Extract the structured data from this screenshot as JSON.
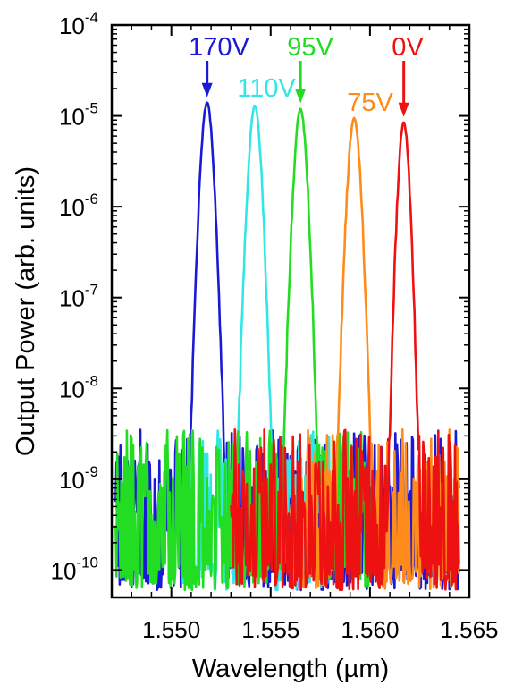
{
  "chart_data": {
    "type": "line",
    "title": "",
    "xlabel": "Wavelength (µm)",
    "ylabel": "Output Power (arb. units)",
    "xlim": [
      1.547,
      1.565
    ],
    "ylim": [
      5e-11,
      0.0001
    ],
    "yscale": "log",
    "grid": false,
    "x_ticks": [
      {
        "value": 1.55,
        "label": "1.550"
      },
      {
        "value": 1.555,
        "label": "1.555"
      },
      {
        "value": 1.56,
        "label": "1.560"
      },
      {
        "value": 1.565,
        "label": "1.565"
      }
    ],
    "y_ticks": [
      {
        "value": 1e-10,
        "base": "10",
        "exp": "-10"
      },
      {
        "value": 1e-09,
        "base": "10",
        "exp": "-9"
      },
      {
        "value": 1e-08,
        "base": "10",
        "exp": "-8"
      },
      {
        "value": 1e-07,
        "base": "10",
        "exp": "-7"
      },
      {
        "value": 1e-06,
        "base": "10",
        "exp": "-6"
      },
      {
        "value": 1e-05,
        "base": "10",
        "exp": "-5"
      },
      {
        "value": 0.0001,
        "base": "10",
        "exp": "-4"
      }
    ],
    "series": [
      {
        "name": "170V",
        "color": "#1a1ad6",
        "peak_x": 1.5518,
        "peak_y": 1.4e-05,
        "fwhm": 0.0009,
        "noise_from": 1.5472,
        "noise_to": 1.5645
      },
      {
        "name": "110V",
        "color": "#33e6e6",
        "peak_x": 1.5542,
        "peak_y": 1.3e-05,
        "fwhm": 0.0009,
        "noise_from": 1.5505,
        "noise_to": 1.558
      },
      {
        "name": "95V",
        "color": "#22dd22",
        "peak_x": 1.5565,
        "peak_y": 1.2e-05,
        "fwhm": 0.0009,
        "noise_from": 1.5472,
        "noise_to": 1.56
      },
      {
        "name": "75V",
        "color": "#ff8c1a",
        "peak_x": 1.5592,
        "peak_y": 9.5e-06,
        "fwhm": 0.0009,
        "noise_from": 1.556,
        "noise_to": 1.5645
      },
      {
        "name": "0V",
        "color": "#ee1111",
        "peak_x": 1.5617,
        "peak_y": 8.5e-06,
        "fwhm": 0.0008,
        "noise_from": 1.553,
        "noise_to": 1.5645
      }
    ],
    "annotations": [
      {
        "text": "170V",
        "color": "#1a1ad6",
        "arrow_to_x": 1.5518,
        "arrow_to_y": 1.4e-05
      },
      {
        "text": "110V",
        "color": "#33e6e6",
        "arrow_to_x": null,
        "arrow_to_y": null
      },
      {
        "text": "95V",
        "color": "#22dd22",
        "arrow_to_x": 1.5565,
        "arrow_to_y": 1.2e-05
      },
      {
        "text": "75V",
        "color": "#ff8c1a",
        "arrow_to_x": null,
        "arrow_to_y": null
      },
      {
        "text": "0V",
        "color": "#ee1111",
        "arrow_to_x": 1.5617,
        "arrow_to_y": 8.5e-06
      }
    ]
  }
}
